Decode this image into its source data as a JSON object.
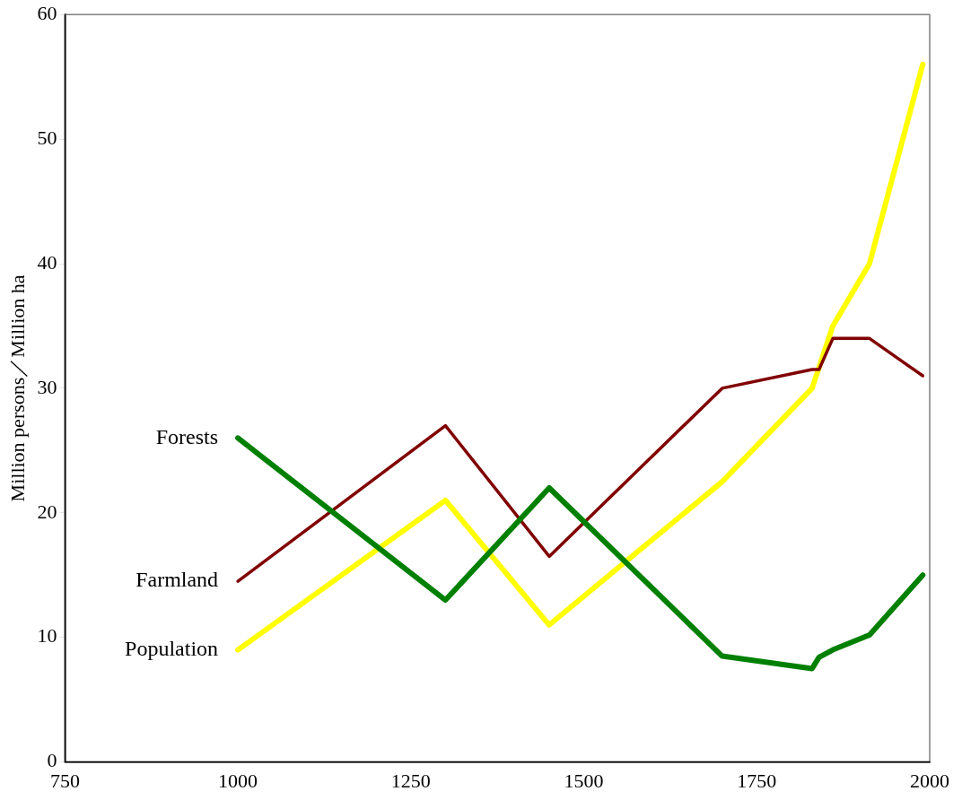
{
  "chart_data": {
    "type": "line",
    "ylabel": "Million persons／Million ha",
    "xlim": [
      750,
      2000
    ],
    "xticks": [
      750,
      1000,
      1250,
      1500,
      1750,
      2000
    ],
    "ylim": [
      0,
      60
    ],
    "yticks": [
      0,
      10,
      20,
      30,
      40,
      50,
      60
    ],
    "grid": false,
    "legend": false,
    "marker": "none",
    "line_style": "solid",
    "series": [
      {
        "name": "Forests",
        "color": "#008000",
        "x": [
          1000,
          1300,
          1450,
          1700,
          1830,
          1840,
          1860,
          1913,
          1990
        ],
        "values": [
          26,
          13,
          22,
          8.5,
          7.5,
          8.4,
          9,
          10.2,
          15
        ]
      },
      {
        "name": "Farmland",
        "color": "#800000",
        "x": [
          1000,
          1300,
          1450,
          1700,
          1830,
          1840,
          1860,
          1913,
          1990
        ],
        "values": [
          14.5,
          27,
          16.5,
          30,
          31.5,
          31.5,
          34,
          34,
          31
        ]
      },
      {
        "name": "Population",
        "color": "#ffff00",
        "x": [
          1000,
          1300,
          1450,
          1700,
          1830,
          1860,
          1913,
          1990
        ],
        "values": [
          9,
          21,
          11,
          22.5,
          30,
          35,
          40,
          56
        ]
      }
    ]
  }
}
